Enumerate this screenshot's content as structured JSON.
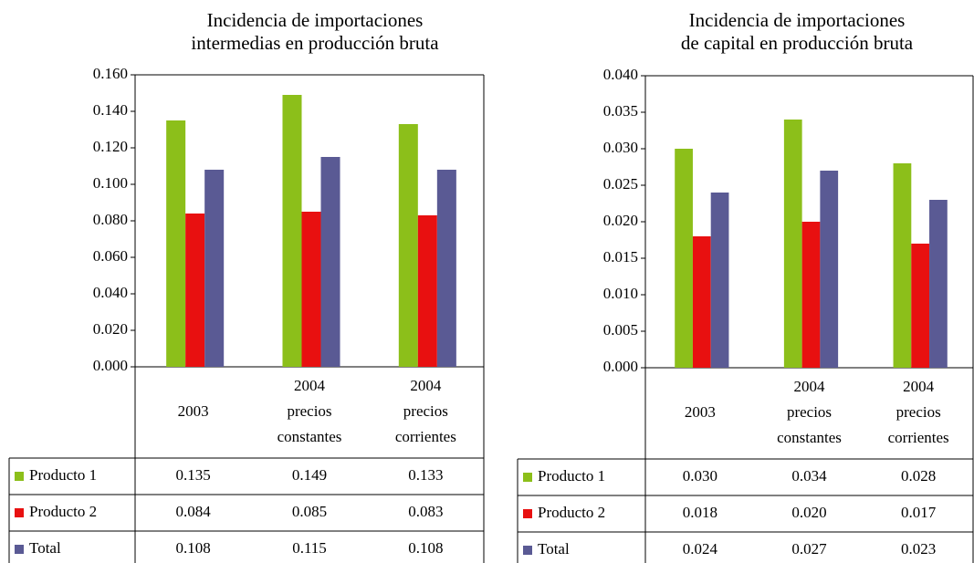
{
  "chart_data": [
    {
      "type": "bar",
      "title": [
        "Incidencia de importaciones",
        "intermedias en producción bruta"
      ],
      "categories": [
        [
          "2003"
        ],
        [
          "2004",
          "precios",
          "constantes"
        ],
        [
          "2004",
          "precios",
          "corrientes"
        ]
      ],
      "series": [
        {
          "name": "Producto 1",
          "color": "#8cbf1a",
          "values": [
            0.135,
            0.149,
            0.133
          ],
          "value_labels": [
            "0.135",
            "0.149",
            "0.133"
          ]
        },
        {
          "name": "Producto 2",
          "color": "#e81010",
          "values": [
            0.084,
            0.085,
            0.083
          ],
          "value_labels": [
            "0.084",
            "0.085",
            "0.083"
          ]
        },
        {
          "name": "Total",
          "color": "#5a5a94",
          "values": [
            0.108,
            0.115,
            0.108
          ],
          "value_labels": [
            "0.108",
            "0.115",
            "0.108"
          ]
        }
      ],
      "ylim": [
        0,
        0.16
      ],
      "yticks": [
        {
          "value": 0,
          "label": "0.000"
        },
        {
          "value": 0.02,
          "label": "0.020"
        },
        {
          "value": 0.04,
          "label": "0.040"
        },
        {
          "value": 0.06,
          "label": "0.060"
        },
        {
          "value": 0.08,
          "label": "0.080"
        },
        {
          "value": 0.1,
          "label": "0.100"
        },
        {
          "value": 0.12,
          "label": "0.120"
        },
        {
          "value": 0.14,
          "label": "0.140"
        },
        {
          "value": 0.16,
          "label": "0.160"
        }
      ]
    },
    {
      "type": "bar",
      "title": [
        "Incidencia de importaciones",
        "de capital en producción bruta"
      ],
      "categories": [
        [
          "2003"
        ],
        [
          "2004",
          "precios",
          "constantes"
        ],
        [
          "2004",
          "precios",
          "corrientes"
        ]
      ],
      "series": [
        {
          "name": "Producto 1",
          "color": "#8cbf1a",
          "values": [
            0.03,
            0.034,
            0.028
          ],
          "value_labels": [
            "0.030",
            "0.034",
            "0.028"
          ]
        },
        {
          "name": "Producto 2",
          "color": "#e81010",
          "values": [
            0.018,
            0.02,
            0.017
          ],
          "value_labels": [
            "0.018",
            "0.020",
            "0.017"
          ]
        },
        {
          "name": "Total",
          "color": "#5a5a94",
          "values": [
            0.024,
            0.027,
            0.023
          ],
          "value_labels": [
            "0.024",
            "0.027",
            "0.023"
          ]
        }
      ],
      "ylim": [
        0,
        0.04
      ],
      "yticks": [
        {
          "value": 0,
          "label": "0.000"
        },
        {
          "value": 0.005,
          "label": "0.005"
        },
        {
          "value": 0.01,
          "label": "0.010"
        },
        {
          "value": 0.015,
          "label": "0.015"
        },
        {
          "value": 0.02,
          "label": "0.020"
        },
        {
          "value": 0.025,
          "label": "0.025"
        },
        {
          "value": 0.03,
          "label": "0.030"
        },
        {
          "value": 0.035,
          "label": "0.035"
        },
        {
          "value": 0.04,
          "label": "0.040"
        }
      ]
    }
  ]
}
